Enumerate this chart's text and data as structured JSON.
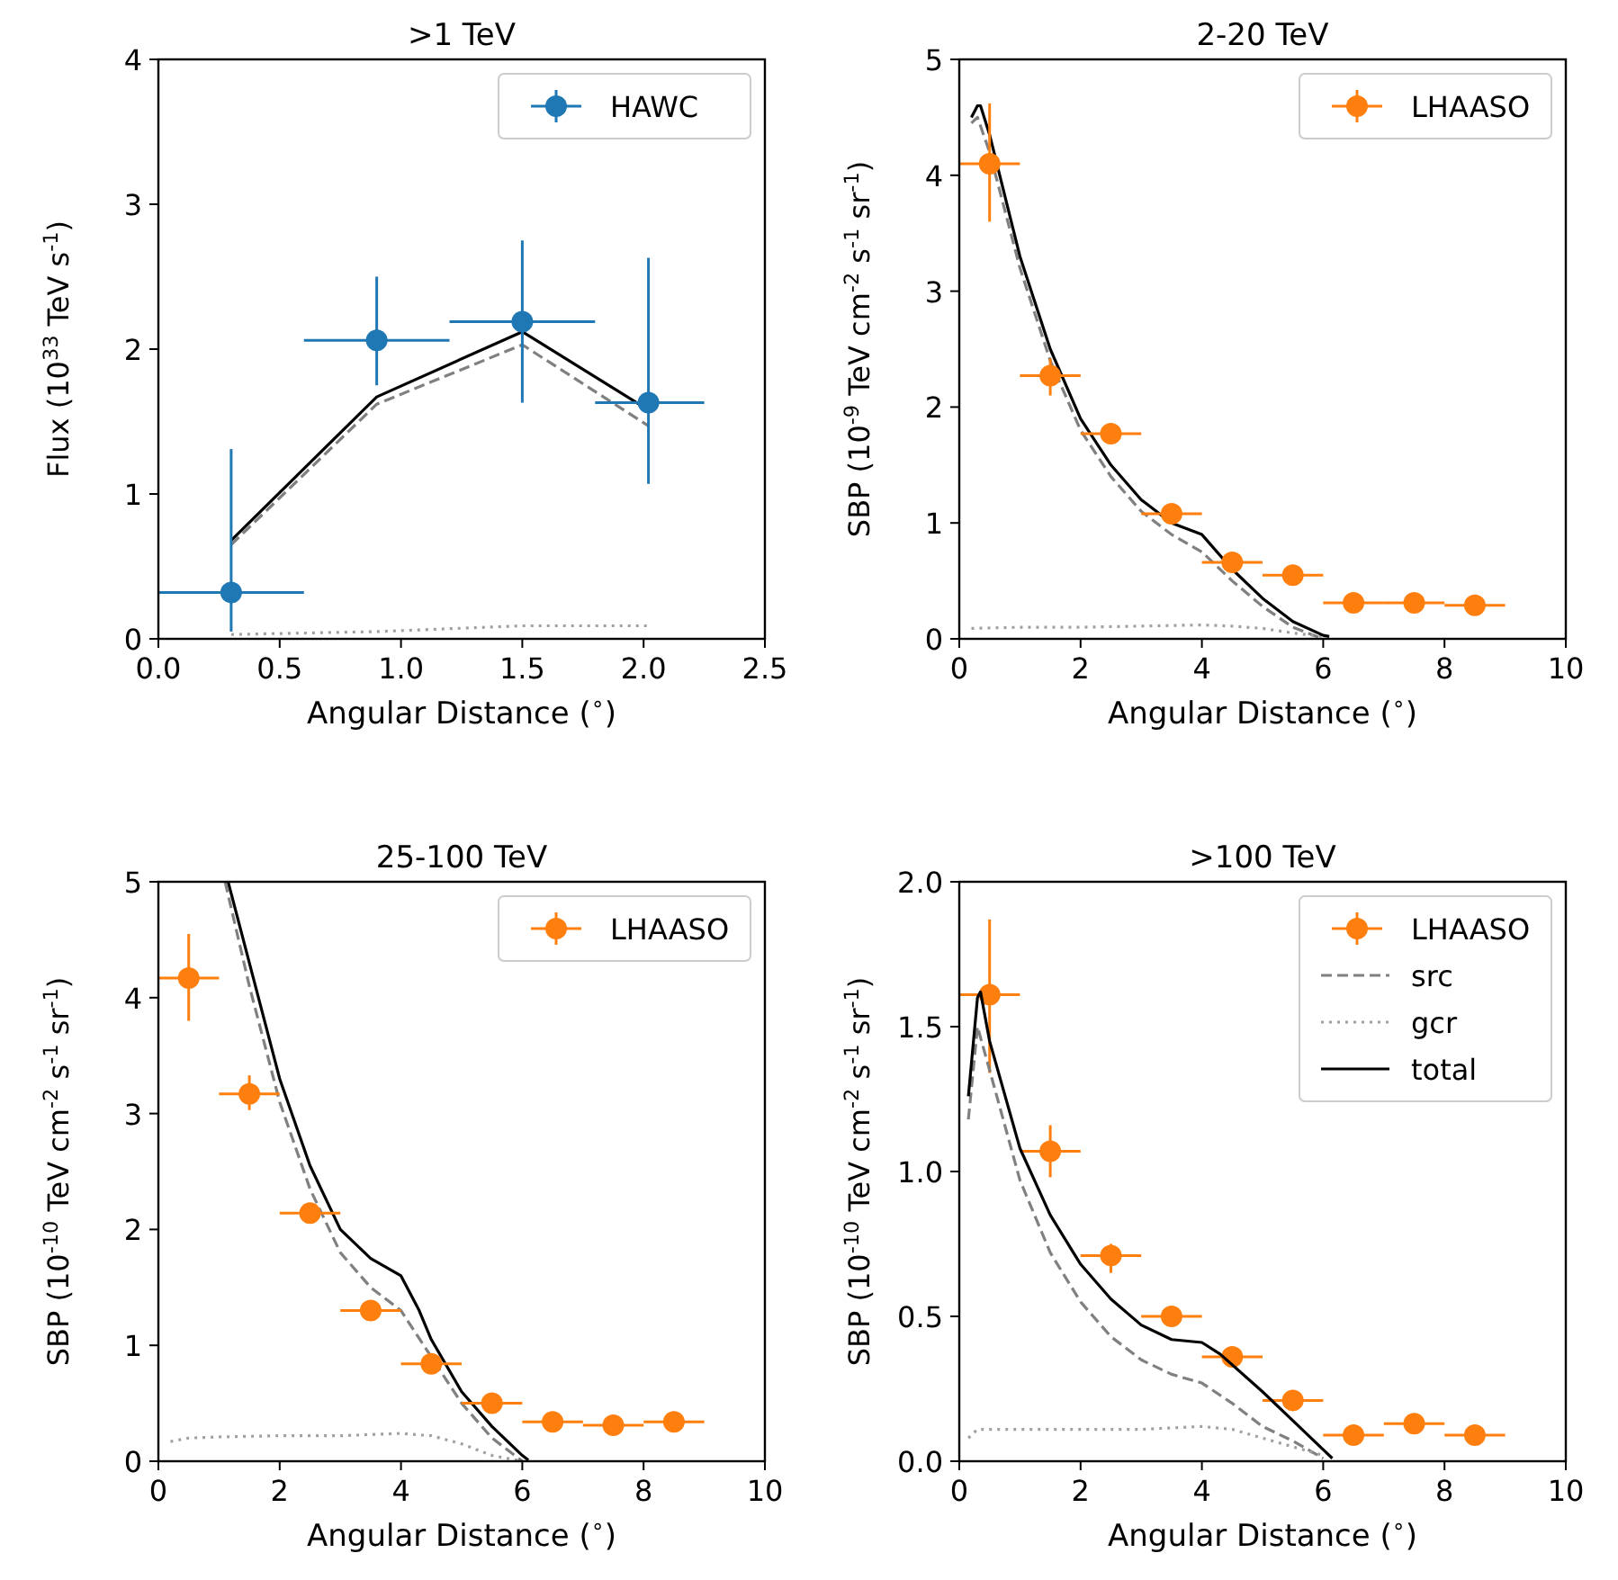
{
  "chart_data": [
    {
      "type": "scatter",
      "title": ">1 TeV",
      "xlabel": "Angular Distance ($^{∘}$)",
      "ylabel": "Flux (10$^{33}$ TeV s$^{-1}$)",
      "xlim": [
        0,
        2.5
      ],
      "ylim": [
        0,
        4
      ],
      "xticks": [
        {
          "value": 0,
          "label": "0.0"
        },
        {
          "value": 0.5,
          "label": "0.5"
        },
        {
          "value": 1,
          "label": "1.0"
        },
        {
          "value": 1.5,
          "label": "1.5"
        },
        {
          "value": 2,
          "label": "2.0"
        },
        {
          "value": 2.5,
          "label": "2.5"
        }
      ],
      "yticks": [
        0,
        1,
        2,
        3,
        4
      ],
      "legend": "top right",
      "grid": false,
      "series": [
        {
          "type": "line",
          "color": "#808080",
          "line_style": "dashed",
          "x": [
            0.3,
            0.9,
            1.5,
            2.02
          ],
          "values": [
            0.65,
            1.62,
            2.03,
            1.47
          ]
        },
        {
          "type": "line",
          "color": "#a0a0a0",
          "line_style": "dotted",
          "x": [
            0.3,
            0.9,
            1.5,
            2.02
          ],
          "values": [
            0.03,
            0.05,
            0.09,
            0.09
          ]
        },
        {
          "type": "line",
          "color": "#000000",
          "line_style": "solid",
          "x": [
            0.3,
            0.9,
            1.5,
            2.02
          ],
          "values": [
            0.68,
            1.67,
            2.12,
            1.58
          ]
        },
        {
          "type": "scatter",
          "name": "HAWC",
          "color": "#1f77b4",
          "marker": "circle",
          "x": [
            0.3,
            0.9,
            1.5,
            2.02
          ],
          "values": [
            0.32,
            2.06,
            2.19,
            1.63
          ],
          "errors": [
            [
              0.05,
              1.31
            ],
            [
              1.75,
              2.5
            ],
            [
              1.63,
              2.75
            ],
            [
              1.07,
              2.63
            ]
          ],
          "xerrors": [
            [
              0,
              0.6
            ],
            [
              0.6,
              1.2
            ],
            [
              1.2,
              1.8
            ],
            [
              1.8,
              2.25
            ]
          ]
        }
      ]
    },
    {
      "type": "scatter",
      "title": "2-20 TeV",
      "xlabel": "Angular Distance ($^{∘}$)",
      "ylabel": "SBP (10$^{-9}$ TeV cm$^{-2}$ s$^{-1}$ sr$^{-1}$)",
      "xlim": [
        0,
        10
      ],
      "ylim": [
        0,
        5
      ],
      "xticks": [
        0,
        2,
        4,
        6,
        8,
        10
      ],
      "yticks": [
        0,
        1,
        2,
        3,
        4,
        5
      ],
      "legend": "top right",
      "grid": false,
      "series": [
        {
          "type": "line",
          "color": "#808080",
          "line_style": "dashed",
          "x": [
            0.2,
            0.3,
            0.5,
            1,
            1.5,
            2,
            2.5,
            3,
            3.5,
            4,
            4.5,
            5,
            5.5,
            6
          ],
          "values": [
            4.45,
            4.5,
            4.2,
            3.2,
            2.4,
            1.8,
            1.4,
            1.1,
            0.9,
            0.75,
            0.5,
            0.28,
            0.1,
            0
          ]
        },
        {
          "type": "line",
          "color": "#a0a0a0",
          "line_style": "dotted",
          "x": [
            0.2,
            1,
            2,
            3,
            4,
            4.5,
            5,
            5.5,
            6
          ],
          "values": [
            0.09,
            0.1,
            0.1,
            0.11,
            0.12,
            0.11,
            0.09,
            0.05,
            0.02
          ]
        },
        {
          "type": "line",
          "color": "#000000",
          "line_style": "solid",
          "x": [
            0.2,
            0.3,
            0.35,
            0.5,
            1,
            1.5,
            2,
            2.5,
            3,
            3.5,
            4,
            4.5,
            5,
            5.5,
            6,
            6.1
          ],
          "values": [
            4.5,
            4.6,
            4.6,
            4.35,
            3.3,
            2.5,
            1.9,
            1.5,
            1.2,
            1.0,
            0.9,
            0.6,
            0.35,
            0.15,
            0.03,
            0.02
          ]
        },
        {
          "type": "scatter",
          "name": "LHAASO",
          "color": "#ff7f0e",
          "marker": "circle",
          "x": [
            0.5,
            1.5,
            2.5,
            3.5,
            4.5,
            5.5,
            6.5,
            7.5,
            8.5
          ],
          "values": [
            4.1,
            2.27,
            1.77,
            1.08,
            0.66,
            0.55,
            0.31,
            0.31,
            0.29
          ],
          "errors": [
            [
              3.6,
              4.62
            ],
            [
              2.1,
              2.42
            ],
            null,
            null,
            null,
            null,
            null,
            null,
            null
          ],
          "xerrors": [
            0.5,
            0.5,
            0.5,
            0.5,
            0.5,
            0.5,
            0.5,
            0.5,
            0.5
          ]
        }
      ]
    },
    {
      "type": "scatter",
      "title": "25-100 TeV",
      "xlabel": "Angular Distance ($^{∘}$)",
      "ylabel": "SBP (10$^{-10}$ TeV cm$^{-2}$ s$^{-1}$ sr$^{-1}$)",
      "xlim": [
        0,
        10
      ],
      "ylim": [
        0,
        5
      ],
      "xticks": [
        0,
        2,
        4,
        6,
        8,
        10
      ],
      "yticks": [
        0,
        1,
        2,
        3,
        4,
        5
      ],
      "legend": "top right",
      "grid": false,
      "series": [
        {
          "type": "line",
          "color": "#808080",
          "line_style": "dashed",
          "x": [
            1.1,
            1.5,
            2,
            2.5,
            3,
            3.5,
            4,
            4.5,
            5,
            5.5,
            6
          ],
          "values": [
            5,
            4.1,
            3.1,
            2.35,
            1.8,
            1.5,
            1.3,
            0.9,
            0.5,
            0.2,
            0
          ]
        },
        {
          "type": "line",
          "color": "#a0a0a0",
          "line_style": "dotted",
          "x": [
            0.2,
            0.5,
            1,
            2,
            3,
            4,
            4.5,
            5,
            5.5,
            6
          ],
          "values": [
            0.17,
            0.2,
            0.21,
            0.22,
            0.22,
            0.24,
            0.22,
            0.15,
            0.05,
            0
          ]
        },
        {
          "type": "line",
          "color": "#000000",
          "line_style": "solid",
          "x": [
            1.15,
            1.5,
            2,
            2.5,
            3,
            3.5,
            4,
            4.3,
            4.5,
            5,
            5.5,
            6,
            6.1
          ],
          "values": [
            5,
            4.3,
            3.3,
            2.55,
            2.0,
            1.75,
            1.6,
            1.3,
            1.05,
            0.6,
            0.3,
            0.05,
            0.01
          ]
        },
        {
          "type": "scatter",
          "name": "LHAASO",
          "color": "#ff7f0e",
          "marker": "circle",
          "x": [
            0.5,
            1.5,
            2.5,
            3.5,
            4.5,
            5.5,
            6.5,
            7.5,
            8.5
          ],
          "values": [
            4.17,
            3.17,
            2.14,
            1.3,
            0.84,
            0.5,
            0.34,
            0.31,
            0.34
          ],
          "errors": [
            [
              3.8,
              4.55
            ],
            [
              3.03,
              3.33
            ],
            null,
            null,
            null,
            null,
            null,
            null,
            null
          ],
          "xerrors": [
            0.5,
            0.5,
            0.5,
            0.5,
            0.5,
            0.5,
            0.5,
            0.5,
            0.5
          ]
        }
      ]
    },
    {
      "type": "scatter",
      "title": ">100 TeV",
      "xlabel": "Angular Distance ($^{∘}$)",
      "ylabel": "SBP (10$^{-10}$ TeV cm$^{-2}$ s$^{-1}$ sr$^{-1}$)",
      "xlim": [
        0,
        10
      ],
      "ylim": [
        0,
        2
      ],
      "xticks": [
        0,
        2,
        4,
        6,
        8,
        10
      ],
      "yticks": [
        {
          "value": 0,
          "label": "0.0"
        },
        {
          "value": 0.5,
          "label": "0.5"
        },
        {
          "value": 1,
          "label": "1.0"
        },
        {
          "value": 1.5,
          "label": "1.5"
        },
        {
          "value": 2,
          "label": "2.0"
        }
      ],
      "legend": "top right",
      "grid": false,
      "series": [
        {
          "type": "scatter",
          "name": "LHAASO",
          "color": "#ff7f0e",
          "marker": "circle",
          "x": [
            0.5,
            1.5,
            2.5,
            3.5,
            4.5,
            5.5,
            6.5,
            7.5,
            8.5
          ],
          "values": [
            1.61,
            1.07,
            0.71,
            0.5,
            0.36,
            0.21,
            0.09,
            0.13,
            0.09
          ],
          "errors": [
            [
              1.34,
              1.87
            ],
            [
              0.98,
              1.16
            ],
            [
              0.65,
              0.75
            ],
            null,
            null,
            null,
            null,
            null,
            null
          ],
          "xerrors": [
            0.5,
            0.5,
            0.5,
            0.5,
            0.5,
            0.5,
            0.5,
            0.5,
            0.5
          ]
        },
        {
          "type": "line",
          "name": "src",
          "color": "#808080",
          "line_style": "dashed",
          "x": [
            0.15,
            0.3,
            0.5,
            1,
            1.5,
            2,
            2.5,
            3,
            3.5,
            4,
            4.5,
            5,
            5.5,
            6
          ],
          "values": [
            1.18,
            1.5,
            1.35,
            0.97,
            0.72,
            0.55,
            0.43,
            0.35,
            0.3,
            0.27,
            0.2,
            0.12,
            0.07,
            0.01
          ]
        },
        {
          "type": "line",
          "name": "gcr",
          "color": "#a0a0a0",
          "line_style": "dotted",
          "x": [
            0.15,
            0.3,
            1,
            2,
            3,
            4,
            4.5,
            5,
            5.5,
            6
          ],
          "values": [
            0.08,
            0.11,
            0.11,
            0.11,
            0.11,
            0.12,
            0.11,
            0.08,
            0.05,
            0.02
          ]
        },
        {
          "type": "line",
          "name": "total",
          "color": "#000000",
          "line_style": "solid",
          "x": [
            0.15,
            0.3,
            0.35,
            0.5,
            1,
            1.5,
            2,
            2.5,
            3,
            3.5,
            4,
            4.3,
            5,
            5.5,
            6,
            6.15
          ],
          "values": [
            1.26,
            1.6,
            1.62,
            1.45,
            1.08,
            0.85,
            0.68,
            0.56,
            0.47,
            0.42,
            0.41,
            0.37,
            0.24,
            0.14,
            0.04,
            0.01
          ]
        }
      ]
    }
  ]
}
